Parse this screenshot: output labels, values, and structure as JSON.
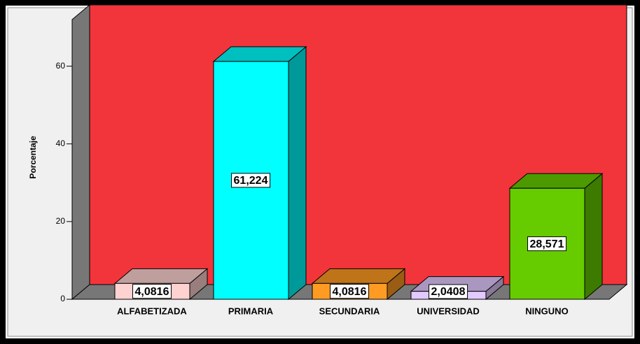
{
  "chart_data": {
    "type": "bar3d",
    "ylabel": "Porcentaje",
    "categories": [
      "ALFABETIZADA",
      "PRIMARIA",
      "SECUNDARIA",
      "UNIVERSIDAD",
      "NINGUNO"
    ],
    "values": [
      4.0816,
      61.224,
      4.0816,
      2.0408,
      28.571
    ],
    "value_labels": [
      "4,0816",
      "61,224",
      "4,0816",
      "2,0408",
      "28,571"
    ],
    "colors": [
      "#ffd2d2",
      "#00ffff",
      "#ff9b22",
      "#e2c9ff",
      "#66cc00"
    ],
    "wall_color": "#f2353b",
    "ylim": [
      0,
      72
    ],
    "yticks": [
      0,
      20,
      40,
      60
    ]
  }
}
